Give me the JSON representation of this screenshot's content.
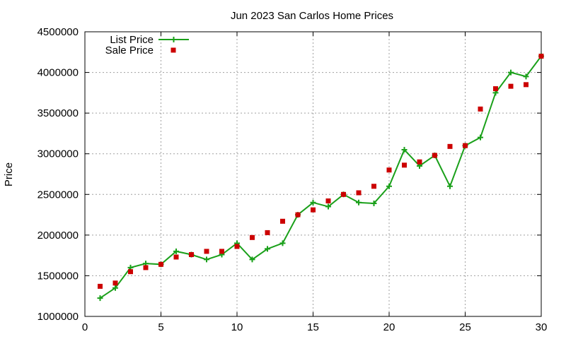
{
  "chart_data": {
    "type": "line",
    "title": "Jun 2023 San Carlos Home Prices",
    "xlabel": "",
    "ylabel": "Price",
    "xlim": [
      0,
      30
    ],
    "ylim": [
      1000000,
      4500000
    ],
    "xticks": [
      0,
      5,
      10,
      15,
      20,
      25,
      30
    ],
    "yticks": [
      1000000,
      1500000,
      2000000,
      2500000,
      3000000,
      3500000,
      4000000,
      4500000
    ],
    "grid": true,
    "legend_position": "top-left",
    "series": [
      {
        "name": "List Price",
        "style": "line+cross-markers",
        "color": "#1aa01a",
        "x": [
          1,
          2,
          3,
          4,
          5,
          6,
          7,
          8,
          9,
          10,
          11,
          12,
          13,
          14,
          15,
          16,
          17,
          18,
          19,
          20,
          21,
          22,
          23,
          24,
          25,
          26,
          27,
          28,
          29,
          30
        ],
        "values": [
          1225000,
          1350000,
          1600000,
          1650000,
          1640000,
          1800000,
          1760000,
          1700000,
          1760000,
          1900000,
          1700000,
          1830000,
          1900000,
          2250000,
          2400000,
          2350000,
          2500000,
          2400000,
          2390000,
          2600000,
          3050000,
          2850000,
          2980000,
          2600000,
          3100000,
          3200000,
          3750000,
          4000000,
          3950000,
          4200000
        ]
      },
      {
        "name": "Sale Price",
        "style": "square-markers",
        "color": "#cc0000",
        "x": [
          1,
          2,
          3,
          4,
          5,
          6,
          7,
          8,
          9,
          10,
          11,
          12,
          13,
          14,
          15,
          16,
          17,
          18,
          19,
          20,
          21,
          22,
          23,
          24,
          25,
          26,
          27,
          28,
          29,
          30
        ],
        "values": [
          1370000,
          1410000,
          1550000,
          1600000,
          1640000,
          1730000,
          1760000,
          1800000,
          1800000,
          1860000,
          1970000,
          2030000,
          2170000,
          2250000,
          2310000,
          2420000,
          2500000,
          2520000,
          2600000,
          2800000,
          2860000,
          2900000,
          2980000,
          3090000,
          3100000,
          3550000,
          3800000,
          3830000,
          3850000,
          4200000
        ]
      }
    ]
  }
}
